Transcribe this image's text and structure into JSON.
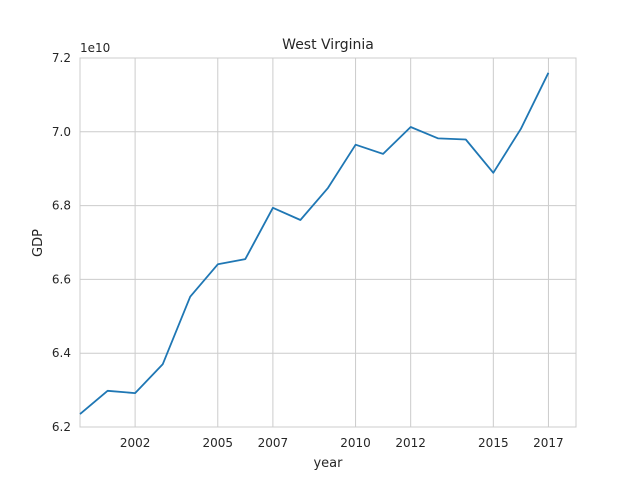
{
  "chart_data": {
    "type": "line",
    "title": "West Virginia",
    "xlabel": "year",
    "ylabel": "GDP",
    "y_offset_label": "1e10",
    "grid": true,
    "legend": "none",
    "xlim": [
      2000.0,
      2018.0
    ],
    "ylim": [
      6.2,
      7.2
    ],
    "x_ticks": [
      2002,
      2005,
      2007,
      2010,
      2012,
      2015,
      2017
    ],
    "x_tick_labels": [
      "2002",
      "2005",
      "2007",
      "2010",
      "2012",
      "2015",
      "2017"
    ],
    "y_ticks": [
      6.2,
      6.4,
      6.6,
      6.8,
      7.0,
      7.2
    ],
    "y_tick_labels": [
      "6.2",
      "6.4",
      "6.6",
      "6.8",
      "7.0",
      "7.2"
    ],
    "series": [
      {
        "color": "#1f77b4",
        "x": [
          2000,
          2001,
          2002,
          2003,
          2004,
          2005,
          2006,
          2007,
          2008,
          2009,
          2010,
          2011,
          2012,
          2013,
          2014,
          2015,
          2016,
          2017
        ],
        "values": [
          6.235,
          6.298,
          6.292,
          6.37,
          6.553,
          6.641,
          6.655,
          6.794,
          6.761,
          6.848,
          6.965,
          6.94,
          7.013,
          6.982,
          6.979,
          6.889,
          7.008,
          7.16
        ]
      }
    ]
  }
}
